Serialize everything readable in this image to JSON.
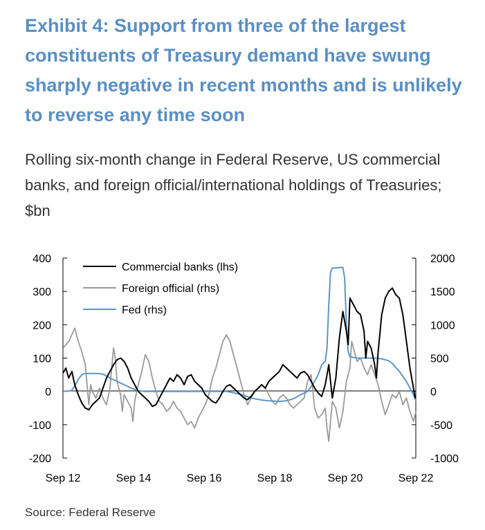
{
  "header": {
    "title": "Exhibit 4: Support from three of the largest constituents of Treasury demand have swung sharply negative in recent months and is unlikely to reverse any time soon",
    "subtitle": "Rolling six-month change in Federal Reserve, US commercial banks, and foreign official/international holdings of Treasuries; $bn"
  },
  "footer": {
    "source": "Source: Federal Reserve"
  },
  "chart_data": {
    "type": "line",
    "x_ticks": [
      "Sep 12",
      "Sep 14",
      "Sep 16",
      "Sep 18",
      "Sep 20",
      "Sep 22"
    ],
    "x_range": [
      2012.667,
      2022.667
    ],
    "y_left": {
      "ticks": [
        400,
        300,
        200,
        100,
        0,
        -100,
        -200
      ],
      "range": [
        -200,
        400
      ]
    },
    "y_right": {
      "ticks": [
        2000,
        1500,
        1000,
        500,
        0,
        -500,
        -1000
      ],
      "range": [
        -1000,
        2000
      ]
    },
    "colors": {
      "commercial_banks": "#000000",
      "foreign_official": "#999999",
      "fed": "#5b96c8"
    },
    "series": [
      {
        "name": "Commercial banks (lhs)",
        "axis": "left",
        "points": [
          [
            2012.67,
            55
          ],
          [
            2012.75,
            70
          ],
          [
            2012.83,
            40
          ],
          [
            2012.92,
            60
          ],
          [
            2013.0,
            20
          ],
          [
            2013.1,
            -10
          ],
          [
            2013.2,
            -35
          ],
          [
            2013.3,
            -50
          ],
          [
            2013.4,
            -55
          ],
          [
            2013.5,
            -40
          ],
          [
            2013.6,
            -30
          ],
          [
            2013.7,
            -20
          ],
          [
            2013.8,
            10
          ],
          [
            2013.9,
            40
          ],
          [
            2014.0,
            60
          ],
          [
            2014.1,
            80
          ],
          [
            2014.2,
            95
          ],
          [
            2014.3,
            100
          ],
          [
            2014.4,
            90
          ],
          [
            2014.5,
            70
          ],
          [
            2014.6,
            40
          ],
          [
            2014.7,
            20
          ],
          [
            2014.8,
            0
          ],
          [
            2014.9,
            -10
          ],
          [
            2015.0,
            -20
          ],
          [
            2015.1,
            -30
          ],
          [
            2015.2,
            -45
          ],
          [
            2015.3,
            -40
          ],
          [
            2015.4,
            -20
          ],
          [
            2015.5,
            0
          ],
          [
            2015.6,
            20
          ],
          [
            2015.7,
            40
          ],
          [
            2015.8,
            30
          ],
          [
            2015.9,
            50
          ],
          [
            2016.0,
            40
          ],
          [
            2016.1,
            20
          ],
          [
            2016.2,
            45
          ],
          [
            2016.3,
            50
          ],
          [
            2016.4,
            30
          ],
          [
            2016.5,
            20
          ],
          [
            2016.6,
            10
          ],
          [
            2016.7,
            -10
          ],
          [
            2016.8,
            -20
          ],
          [
            2016.9,
            -30
          ],
          [
            2017.0,
            -35
          ],
          [
            2017.1,
            -20
          ],
          [
            2017.2,
            0
          ],
          [
            2017.3,
            15
          ],
          [
            2017.4,
            20
          ],
          [
            2017.5,
            10
          ],
          [
            2017.6,
            0
          ],
          [
            2017.7,
            -10
          ],
          [
            2017.8,
            -20
          ],
          [
            2017.9,
            -25
          ],
          [
            2018.0,
            -15
          ],
          [
            2018.1,
            0
          ],
          [
            2018.2,
            10
          ],
          [
            2018.3,
            20
          ],
          [
            2018.4,
            10
          ],
          [
            2018.5,
            30
          ],
          [
            2018.6,
            40
          ],
          [
            2018.7,
            50
          ],
          [
            2018.8,
            60
          ],
          [
            2018.9,
            80
          ],
          [
            2019.0,
            70
          ],
          [
            2019.1,
            60
          ],
          [
            2019.2,
            50
          ],
          [
            2019.3,
            40
          ],
          [
            2019.4,
            55
          ],
          [
            2019.5,
            60
          ],
          [
            2019.6,
            50
          ],
          [
            2019.7,
            30
          ],
          [
            2019.8,
            10
          ],
          [
            2019.9,
            -5
          ],
          [
            2020.0,
            -15
          ],
          [
            2020.1,
            20
          ],
          [
            2020.2,
            80
          ],
          [
            2020.3,
            -20
          ],
          [
            2020.4,
            40
          ],
          [
            2020.5,
            160
          ],
          [
            2020.6,
            240
          ],
          [
            2020.7,
            180
          ],
          [
            2020.75,
            140
          ],
          [
            2020.8,
            280
          ],
          [
            2020.85,
            270
          ],
          [
            2020.9,
            260
          ],
          [
            2021.0,
            240
          ],
          [
            2021.1,
            230
          ],
          [
            2021.2,
            180
          ],
          [
            2021.25,
            100
          ],
          [
            2021.3,
            150
          ],
          [
            2021.4,
            130
          ],
          [
            2021.5,
            80
          ],
          [
            2021.55,
            40
          ],
          [
            2021.6,
            120
          ],
          [
            2021.7,
            230
          ],
          [
            2021.8,
            280
          ],
          [
            2021.9,
            300
          ],
          [
            2022.0,
            310
          ],
          [
            2022.1,
            290
          ],
          [
            2022.2,
            280
          ],
          [
            2022.3,
            230
          ],
          [
            2022.4,
            150
          ],
          [
            2022.5,
            70
          ],
          [
            2022.6,
            10
          ],
          [
            2022.65,
            -20
          ]
        ]
      },
      {
        "name": "Foreign official (rhs)",
        "axis": "right",
        "points": [
          [
            2012.67,
            650
          ],
          [
            2012.75,
            700
          ],
          [
            2012.83,
            750
          ],
          [
            2012.92,
            850
          ],
          [
            2013.0,
            950
          ],
          [
            2013.05,
            850
          ],
          [
            2013.1,
            750
          ],
          [
            2013.2,
            600
          ],
          [
            2013.3,
            400
          ],
          [
            2013.35,
            100
          ],
          [
            2013.4,
            -200
          ],
          [
            2013.45,
            100
          ],
          [
            2013.5,
            0
          ],
          [
            2013.6,
            -100
          ],
          [
            2013.7,
            50
          ],
          [
            2013.8,
            -100
          ],
          [
            2013.9,
            -200
          ],
          [
            2014.0,
            50
          ],
          [
            2014.05,
            350
          ],
          [
            2014.1,
            650
          ],
          [
            2014.15,
            500
          ],
          [
            2014.2,
            150
          ],
          [
            2014.3,
            -50
          ],
          [
            2014.35,
            -300
          ],
          [
            2014.4,
            -50
          ],
          [
            2014.5,
            -150
          ],
          [
            2014.6,
            -250
          ],
          [
            2014.65,
            -450
          ],
          [
            2014.7,
            -150
          ],
          [
            2014.8,
            100
          ],
          [
            2014.9,
            300
          ],
          [
            2015.0,
            550
          ],
          [
            2015.1,
            450
          ],
          [
            2015.2,
            200
          ],
          [
            2015.3,
            0
          ],
          [
            2015.4,
            -150
          ],
          [
            2015.5,
            -200
          ],
          [
            2015.6,
            -300
          ],
          [
            2015.7,
            -250
          ],
          [
            2015.8,
            -150
          ],
          [
            2015.9,
            -250
          ],
          [
            2016.0,
            -300
          ],
          [
            2016.1,
            -400
          ],
          [
            2016.2,
            -500
          ],
          [
            2016.3,
            -450
          ],
          [
            2016.4,
            -550
          ],
          [
            2016.5,
            -400
          ],
          [
            2016.6,
            -300
          ],
          [
            2016.7,
            -200
          ],
          [
            2016.8,
            -50
          ],
          [
            2016.9,
            200
          ],
          [
            2017.0,
            350
          ],
          [
            2017.1,
            550
          ],
          [
            2017.2,
            750
          ],
          [
            2017.3,
            850
          ],
          [
            2017.4,
            750
          ],
          [
            2017.5,
            550
          ],
          [
            2017.6,
            350
          ],
          [
            2017.7,
            150
          ],
          [
            2017.8,
            -50
          ],
          [
            2017.9,
            -200
          ],
          [
            2018.0,
            -100
          ],
          [
            2018.1,
            0
          ],
          [
            2018.2,
            50
          ],
          [
            2018.3,
            100
          ],
          [
            2018.4,
            50
          ],
          [
            2018.5,
            -50
          ],
          [
            2018.6,
            -150
          ],
          [
            2018.7,
            -200
          ],
          [
            2018.8,
            -100
          ],
          [
            2018.9,
            -50
          ],
          [
            2019.0,
            -100
          ],
          [
            2019.1,
            -200
          ],
          [
            2019.2,
            -250
          ],
          [
            2019.3,
            -200
          ],
          [
            2019.4,
            -150
          ],
          [
            2019.5,
            -100
          ],
          [
            2019.6,
            150
          ],
          [
            2019.7,
            250
          ],
          [
            2019.75,
            0
          ],
          [
            2019.8,
            -250
          ],
          [
            2019.9,
            -400
          ],
          [
            2020.0,
            -350
          ],
          [
            2020.1,
            -250
          ],
          [
            2020.15,
            -550
          ],
          [
            2020.2,
            -750
          ],
          [
            2020.25,
            -450
          ],
          [
            2020.3,
            -150
          ],
          [
            2020.4,
            -250
          ],
          [
            2020.5,
            -550
          ],
          [
            2020.6,
            -300
          ],
          [
            2020.7,
            150
          ],
          [
            2020.8,
            350
          ],
          [
            2020.85,
            750
          ],
          [
            2020.9,
            650
          ],
          [
            2021.0,
            450
          ],
          [
            2021.1,
            500
          ],
          [
            2021.2,
            350
          ],
          [
            2021.3,
            250
          ],
          [
            2021.4,
            400
          ],
          [
            2021.5,
            250
          ],
          [
            2021.6,
            100
          ],
          [
            2021.7,
            -150
          ],
          [
            2021.8,
            -350
          ],
          [
            2021.9,
            -200
          ],
          [
            2022.0,
            -50
          ],
          [
            2022.1,
            -100
          ],
          [
            2022.2,
            0
          ],
          [
            2022.3,
            -200
          ],
          [
            2022.4,
            -100
          ],
          [
            2022.5,
            -300
          ],
          [
            2022.6,
            -450
          ],
          [
            2022.67,
            -300
          ]
        ]
      },
      {
        "name": "Fed (rhs)",
        "axis": "right",
        "points": [
          [
            2012.67,
            0
          ],
          [
            2012.9,
            10
          ],
          [
            2013.0,
            80
          ],
          [
            2013.1,
            180
          ],
          [
            2013.2,
            250
          ],
          [
            2013.3,
            270
          ],
          [
            2013.6,
            270
          ],
          [
            2013.8,
            260
          ],
          [
            2014.0,
            200
          ],
          [
            2014.2,
            150
          ],
          [
            2014.4,
            100
          ],
          [
            2014.6,
            50
          ],
          [
            2014.8,
            10
          ],
          [
            2015.0,
            0
          ],
          [
            2017.3,
            0
          ],
          [
            2017.5,
            -20
          ],
          [
            2017.8,
            -60
          ],
          [
            2018.0,
            -100
          ],
          [
            2018.3,
            -130
          ],
          [
            2018.5,
            -140
          ],
          [
            2018.8,
            -150
          ],
          [
            2019.0,
            -140
          ],
          [
            2019.2,
            -110
          ],
          [
            2019.4,
            -50
          ],
          [
            2019.6,
            0
          ],
          [
            2019.8,
            150
          ],
          [
            2019.9,
            250
          ],
          [
            2020.0,
            400
          ],
          [
            2020.1,
            450
          ],
          [
            2020.15,
            650
          ],
          [
            2020.2,
            1300
          ],
          [
            2020.25,
            1780
          ],
          [
            2020.3,
            1850
          ],
          [
            2020.6,
            1860
          ],
          [
            2020.65,
            1700
          ],
          [
            2020.7,
            1000
          ],
          [
            2020.75,
            600
          ],
          [
            2020.8,
            520
          ],
          [
            2021.0,
            500
          ],
          [
            2021.5,
            500
          ],
          [
            2021.7,
            490
          ],
          [
            2021.9,
            460
          ],
          [
            2022.0,
            420
          ],
          [
            2022.2,
            300
          ],
          [
            2022.4,
            150
          ],
          [
            2022.5,
            50
          ],
          [
            2022.6,
            -50
          ],
          [
            2022.67,
            -150
          ]
        ]
      }
    ],
    "legend": {
      "placement": "top-left"
    },
    "grid": false
  }
}
